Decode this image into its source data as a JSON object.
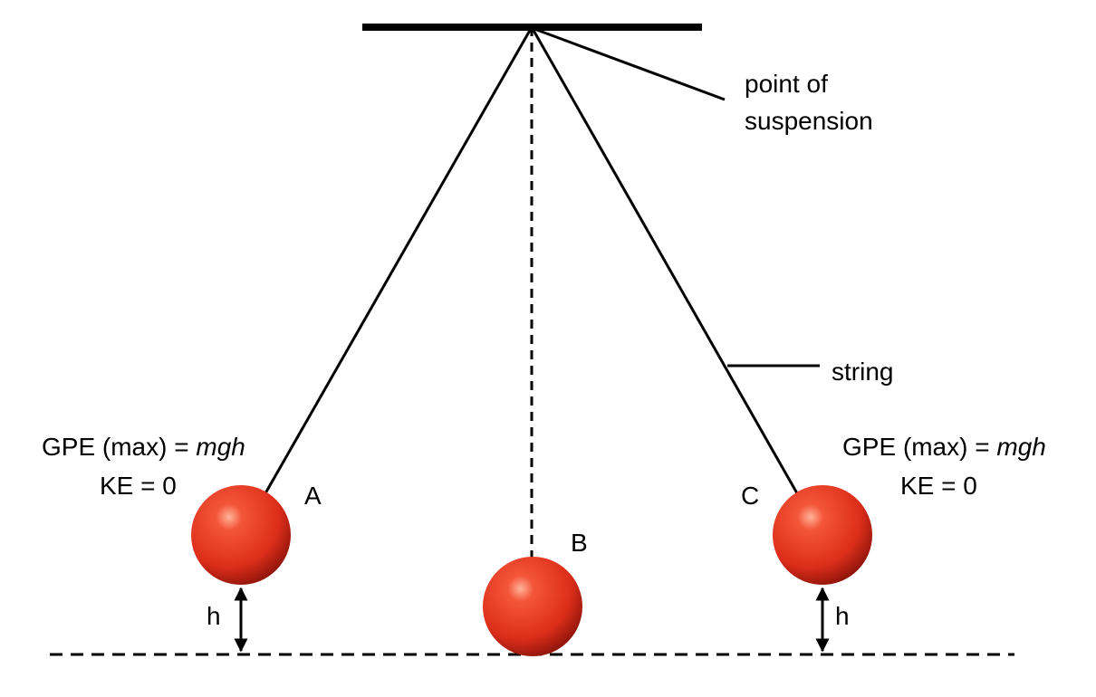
{
  "labels": {
    "point_of_suspension_line1": "point of",
    "point_of_suspension_line2": "suspension",
    "string": "string",
    "bob_a": "A",
    "bob_b": "B",
    "bob_c": "C",
    "height": "h"
  },
  "energy_left": {
    "gpe_prefix": "GPE (max) = ",
    "gpe_formula": "mgh",
    "ke": "KE = 0"
  },
  "energy_right": {
    "gpe_prefix": "GPE (max) = ",
    "gpe_formula": "mgh",
    "ke": "KE = 0"
  },
  "colors": {
    "line": "#000000",
    "bob_light": "#ff9a7a",
    "bob_mid": "#e8341f",
    "bob_dark": "#8e140a",
    "background": "#ffffff"
  }
}
